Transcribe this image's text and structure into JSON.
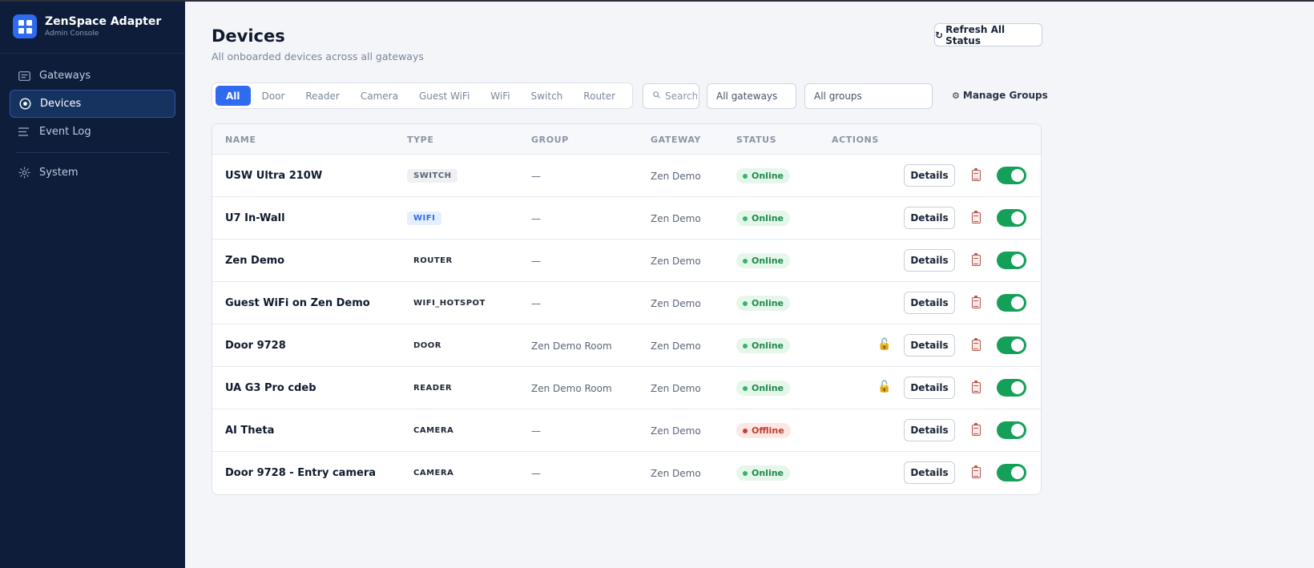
{
  "sidebar": {
    "brand_name": "ZenSpace Adapter",
    "brand_sub": "Admin Console",
    "items": [
      {
        "label": "Gateways",
        "icon": "gateway-icon"
      },
      {
        "label": "Devices",
        "icon": "device-icon"
      },
      {
        "label": "Event Log",
        "icon": "list-icon"
      },
      {
        "label": "System",
        "icon": "gear-icon"
      }
    ],
    "active": "Devices"
  },
  "header": {
    "title": "Devices",
    "subtitle": "All onboarded devices across all gateways",
    "refresh_label": "Refresh All Status"
  },
  "filters": {
    "tabs": [
      "All",
      "Door",
      "Reader",
      "Camera",
      "Guest WiFi",
      "WiFi",
      "Switch",
      "Router"
    ],
    "active_tab": "All",
    "search_placeholder": "Search",
    "gateway_select": "All gateways",
    "group_select": "All groups",
    "manage_groups_label": "Manage Groups"
  },
  "table": {
    "columns": [
      "NAME",
      "TYPE",
      "GROUP",
      "GATEWAY",
      "STATUS",
      "ACTIONS"
    ],
    "details_label": "Details",
    "rows": [
      {
        "name": "USW Ultra 210W",
        "type": "SWITCH",
        "group": "—",
        "gateway": "Zen Demo",
        "status": "Online",
        "lock": false,
        "enabled": true
      },
      {
        "name": "U7 In-Wall",
        "type": "WIFI",
        "group": "—",
        "gateway": "Zen Demo",
        "status": "Online",
        "lock": false,
        "enabled": true
      },
      {
        "name": "Zen Demo",
        "type": "ROUTER",
        "group": "—",
        "gateway": "Zen Demo",
        "status": "Online",
        "lock": false,
        "enabled": true
      },
      {
        "name": "Guest WiFi on Zen Demo",
        "type": "WIFI_HOTSPOT",
        "group": "—",
        "gateway": "Zen Demo",
        "status": "Online",
        "lock": false,
        "enabled": true
      },
      {
        "name": "Door 9728",
        "type": "DOOR",
        "group": "Zen Demo Room",
        "gateway": "Zen Demo",
        "status": "Online",
        "lock": true,
        "enabled": true
      },
      {
        "name": "UA G3 Pro cdeb",
        "type": "READER",
        "group": "Zen Demo Room",
        "gateway": "Zen Demo",
        "status": "Online",
        "lock": true,
        "enabled": true
      },
      {
        "name": "AI Theta",
        "type": "CAMERA",
        "group": "—",
        "gateway": "Zen Demo",
        "status": "Offline",
        "lock": false,
        "enabled": true
      },
      {
        "name": "Door 9728 - Entry camera",
        "type": "CAMERA",
        "group": "—",
        "gateway": "Zen Demo",
        "status": "Online",
        "lock": false,
        "enabled": true
      }
    ]
  },
  "colors": {
    "sidebar_bg": "#0d1d3a",
    "accent": "#2f6bf0",
    "online": "#1f8a4c",
    "offline": "#c33a2e",
    "toggle_on": "#15a05a"
  }
}
